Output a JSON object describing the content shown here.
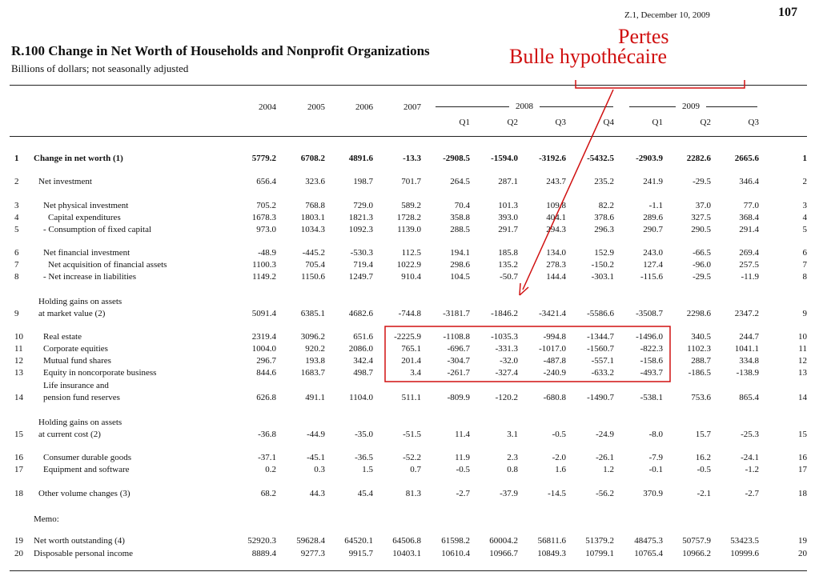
{
  "header": {
    "source": "Z.1, December 10, 2009",
    "page_number": "107"
  },
  "table_title": "R.100 Change in Net Worth of Households and Nonprofit Organizations",
  "table_subtitle": "Billions of dollars; not seasonally adjusted",
  "annotation": {
    "line1": "Pertes",
    "line2": "Bulle hypothécaire",
    "color": "#d01010"
  },
  "columns": {
    "years": [
      "2004",
      "2005",
      "2006",
      "2007"
    ],
    "group_2008": "2008",
    "group_2009": "2009",
    "quarters_2008": [
      "Q1",
      "Q2",
      "Q3",
      "Q4"
    ],
    "quarters_2009": [
      "Q1",
      "Q2",
      "Q3"
    ]
  },
  "rows": [
    {
      "num": "1",
      "label": "Change in net worth (1)",
      "bold": true,
      "values": [
        "5779.2",
        "6708.2",
        "4891.6",
        "-13.3",
        "-2908.5",
        "-1594.0",
        "-3192.6",
        "-5432.5",
        "-2903.9",
        "2282.6",
        "2665.6"
      ]
    },
    {
      "num": "2",
      "label": "Net investment",
      "values": [
        "656.4",
        "323.6",
        "198.7",
        "701.7",
        "264.5",
        "287.1",
        "243.7",
        "235.2",
        "241.9",
        "-29.5",
        "346.4"
      ]
    },
    {
      "num": "3",
      "label": "Net physical investment",
      "values": [
        "705.2",
        "768.8",
        "729.0",
        "589.2",
        "70.4",
        "101.3",
        "109.8",
        "82.2",
        "-1.1",
        "37.0",
        "77.0"
      ]
    },
    {
      "num": "4",
      "label": "Capital expenditures",
      "values": [
        "1678.3",
        "1803.1",
        "1821.3",
        "1728.2",
        "358.8",
        "393.0",
        "404.1",
        "378.6",
        "289.6",
        "327.5",
        "368.4"
      ]
    },
    {
      "num": "5",
      "label": "- Consumption of fixed capital",
      "values": [
        "973.0",
        "1034.3",
        "1092.3",
        "1139.0",
        "288.5",
        "291.7",
        "294.3",
        "296.3",
        "290.7",
        "290.5",
        "291.4"
      ]
    },
    {
      "num": "6",
      "label": "Net financial investment",
      "values": [
        "-48.9",
        "-445.2",
        "-530.3",
        "112.5",
        "194.1",
        "185.8",
        "134.0",
        "152.9",
        "243.0",
        "-66.5",
        "269.4"
      ]
    },
    {
      "num": "7",
      "label": "Net acquisition of financial assets",
      "values": [
        "1100.3",
        "705.4",
        "719.4",
        "1022.9",
        "298.6",
        "135.2",
        "278.3",
        "-150.2",
        "127.4",
        "-96.0",
        "257.5"
      ]
    },
    {
      "num": "8",
      "label": "- Net increase in liabilities",
      "values": [
        "1149.2",
        "1150.6",
        "1249.7",
        "910.4",
        "104.5",
        "-50.7",
        "144.4",
        "-303.1",
        "-115.6",
        "-29.5",
        "-11.9"
      ]
    },
    {
      "num": "9",
      "label_line1": "Holding gains on assets",
      "label": "at market value (2)",
      "values": [
        "5091.4",
        "6385.1",
        "4682.6",
        "-744.8",
        "-3181.7",
        "-1846.2",
        "-3421.4",
        "-5586.6",
        "-3508.7",
        "2298.6",
        "2347.2"
      ]
    },
    {
      "num": "10",
      "label": "Real estate",
      "values": [
        "2319.4",
        "3096.2",
        "651.6",
        "-2225.9",
        "-1108.8",
        "-1035.3",
        "-994.8",
        "-1344.7",
        "-1496.0",
        "340.5",
        "244.7"
      ]
    },
    {
      "num": "11",
      "label": "Corporate equities",
      "values": [
        "1004.0",
        "920.2",
        "2086.0",
        "765.1",
        "-696.7",
        "-331.3",
        "-1017.0",
        "-1560.7",
        "-822.3",
        "1102.3",
        "1041.1"
      ]
    },
    {
      "num": "12",
      "label": "Mutual fund shares",
      "values": [
        "296.7",
        "193.8",
        "342.4",
        "201.4",
        "-304.7",
        "-32.0",
        "-487.8",
        "-557.1",
        "-158.6",
        "288.7",
        "334.8"
      ]
    },
    {
      "num": "13",
      "label": "Equity in noncorporate business",
      "values": [
        "844.6",
        "1683.7",
        "498.7",
        "3.4",
        "-261.7",
        "-327.4",
        "-240.9",
        "-633.2",
        "-493.7",
        "-186.5",
        "-138.9"
      ]
    },
    {
      "num": "14",
      "label_line1": "Life insurance and",
      "label": "pension fund reserves",
      "values": [
        "626.8",
        "491.1",
        "1104.0",
        "511.1",
        "-809.9",
        "-120.2",
        "-680.8",
        "-1490.7",
        "-538.1",
        "753.6",
        "865.4"
      ]
    },
    {
      "num": "15",
      "label_line1": "Holding gains on assets",
      "label": "at current cost (2)",
      "values": [
        "-36.8",
        "-44.9",
        "-35.0",
        "-51.5",
        "11.4",
        "3.1",
        "-0.5",
        "-24.9",
        "-8.0",
        "15.7",
        "-25.3"
      ]
    },
    {
      "num": "16",
      "label": "Consumer durable goods",
      "values": [
        "-37.1",
        "-45.1",
        "-36.5",
        "-52.2",
        "11.9",
        "2.3",
        "-2.0",
        "-26.1",
        "-7.9",
        "16.2",
        "-24.1"
      ]
    },
    {
      "num": "17",
      "label": "Equipment and software",
      "values": [
        "0.2",
        "0.3",
        "1.5",
        "0.7",
        "-0.5",
        "0.8",
        "1.6",
        "1.2",
        "-0.1",
        "-0.5",
        "-1.2"
      ]
    },
    {
      "num": "18",
      "label": "Other volume changes (3)",
      "values": [
        "68.2",
        "44.3",
        "45.4",
        "81.3",
        "-2.7",
        "-37.9",
        "-14.5",
        "-56.2",
        "370.9",
        "-2.1",
        "-2.7"
      ]
    },
    {
      "num": "19",
      "label": "Net worth outstanding (4)",
      "values": [
        "52920.3",
        "59628.4",
        "64520.1",
        "64506.8",
        "61598.2",
        "60004.2",
        "56811.6",
        "51379.2",
        "48475.3",
        "50757.9",
        "53423.5"
      ]
    },
    {
      "num": "20",
      "label": "Disposable personal income",
      "values": [
        "8889.4",
        "9277.3",
        "9915.7",
        "10403.1",
        "10610.4",
        "10966.7",
        "10849.3",
        "10799.1",
        "10765.4",
        "10966.2",
        "10999.6"
      ]
    }
  ],
  "memo_label": "Memo:"
}
